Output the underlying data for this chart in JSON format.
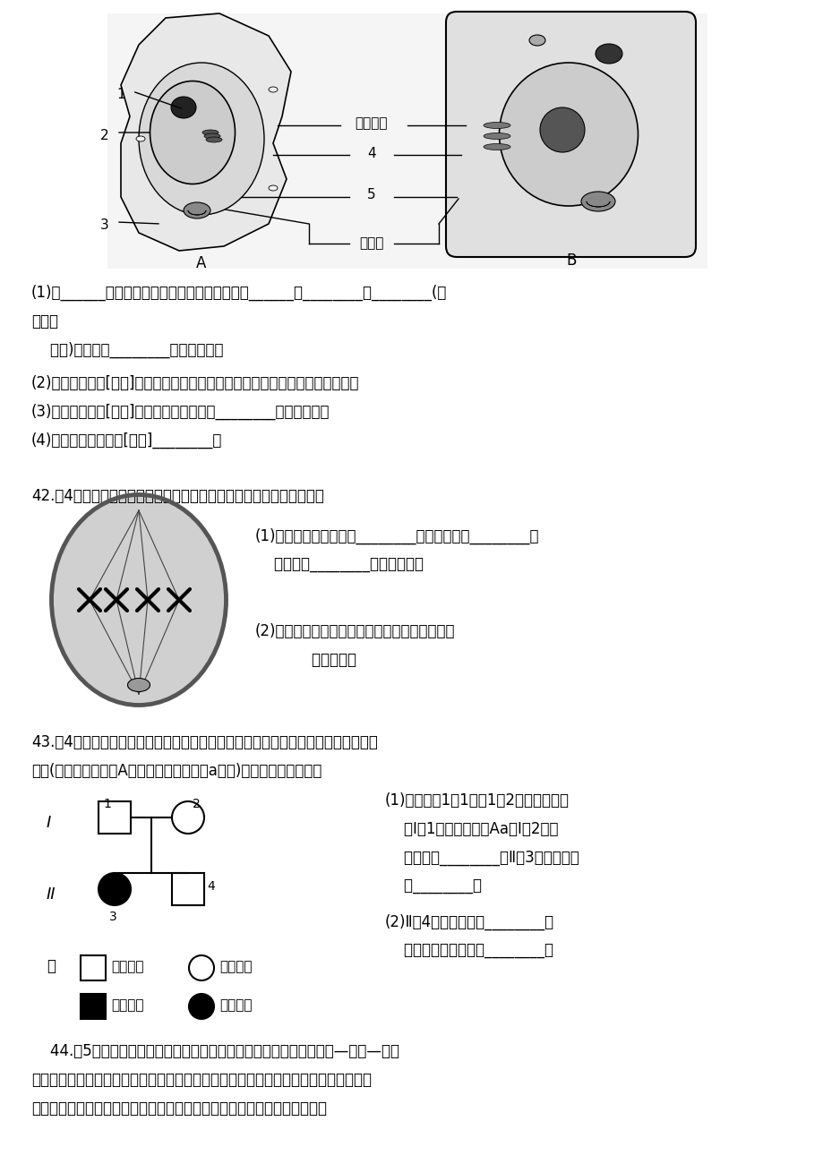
{
  "background_color": "#ffffff",
  "page_width": 9.2,
  "page_height": 13.0,
  "dpi": 100,
  "q41_lines": [
    "(1)图______是植物细胞，判断的依据是细胞中有______、________、________(填",
    "名称或",
    "    标号)结构，图________是动物细胞。",
    "(2)细胞核是标号[　　]，其功能是遗传信息库，是细胞代谢和遗传的控制中心。",
    "(3)线粒体是标号[　　]，其功能是细胞进行________的主要场所。",
    "(4)光合作用的场所是[　　]________。"
  ],
  "q42_text": "42.（4分）下图是动物细胞有丝分裂某一时期图像，请据图回答问题。",
  "q42_sub1": "(1)该细胞处于分裂期的________期，细胞中有________条",
  "q42_sub1b": "    染色体，________条染色单体。",
  "q42_sub2": "(2)该细胞分裂结束后，产生的每个子细胞中含有",
  "q42_sub2b": "            条染色体。",
  "q43_text1": "43.（4分）人类白化病是常染色体上的隐性基因控制的遗传病，下图是一个白化病系",
  "q43_text2": "谱图(肤色正常基因用A表示，白化病基因用a表示)，请据图回答问题。",
  "q43_r1": "(1)由图可知1代1号、1代2号表现正常，",
  "q43_r2": "    且Ⅰ代1号的基因型是Aa，Ⅰ代2号的",
  "q43_r3": "    基因型是________，Ⅱ代3号的基因型",
  "q43_r4": "    是________。",
  "q43_r5": "(2)Ⅱ代4号的基因型是________，",
  "q43_r6": "    他是杂合子的概率是________。",
  "q44_text1": "    44.（5分）内环境稳态是机体进行正常生命活动的必要条件。在神经—体液—免疫",
  "q44_text2": "调节的共同作用下，健康人的内环境的每一种成分和理化性质都处于动态平衡中。下图",
  "q44_text3": "是关于内环境及其稳态的概念图，请在答题卡上填写１～５处适当的名词。",
  "label_golgi": "高尔基体",
  "label_er": "内质网",
  "label_A": "A",
  "label_B": "B",
  "label_zhu": "注",
  "label_normal_male": "正常男性",
  "label_normal_female": "正常女性",
  "label_sick_male": "患病男性",
  "label_sick_female": "患病女性"
}
